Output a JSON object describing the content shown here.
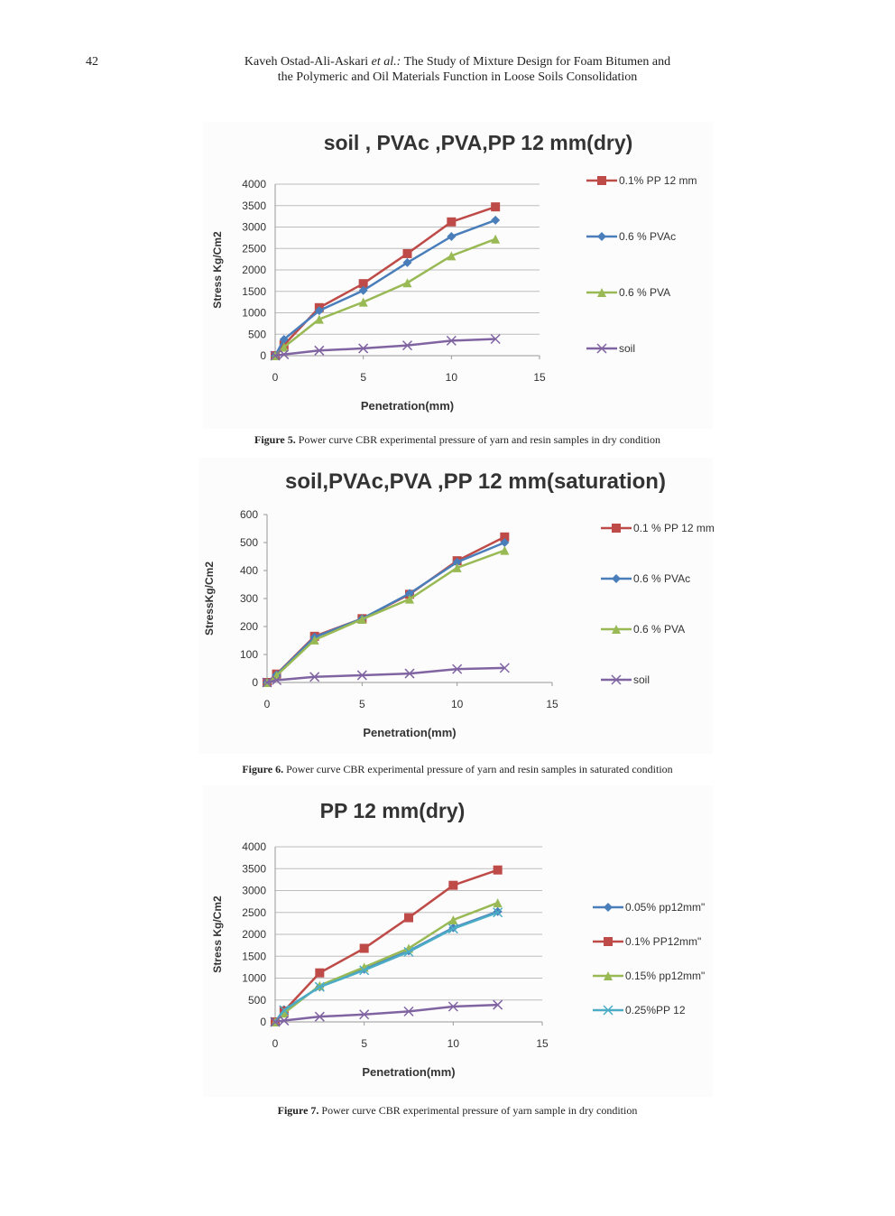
{
  "header": {
    "page_number": "42",
    "authors": "Kaveh Ostad-Ali-Askari",
    "authors_suffix": "et al.:",
    "title_lines": [
      "The Study of Mixture Design for Foam Bitumen and",
      "the Polymeric and Oil Materials Function in Loose Soils Consolidation"
    ]
  },
  "figures": [
    {
      "label": "Figure 5.",
      "caption": "Power curve CBR experimental pressure of yarn and resin samples in dry condition"
    },
    {
      "label": "Figure 6.",
      "caption": "Power curve CBR experimental pressure of yarn and resin samples in saturated condition"
    },
    {
      "label": "Figure 7.",
      "caption": "Power curve CBR experimental pressure of yarn sample in dry condition"
    }
  ],
  "chart_data": [
    {
      "type": "line",
      "title": "soil , PVAc ,PVA,PP 12 mm(dry)",
      "x_label": "Penetration(mm)",
      "y_label": "Stress Kg/Cm2",
      "x": [
        0,
        0.5,
        2.5,
        5,
        7.5,
        10,
        12.5
      ],
      "xlim": [
        0,
        15
      ],
      "xticks": [
        0,
        5,
        10,
        15
      ],
      "ylim": [
        0,
        4000
      ],
      "yticks": [
        0,
        500,
        1000,
        1500,
        2000,
        2500,
        3000,
        3500,
        4000
      ],
      "grid": true,
      "series": [
        {
          "name": "0.1% PP 12 mm",
          "color": "#be4b48",
          "marker": "square",
          "values": [
            0,
            250,
            1120,
            1680,
            2380,
            3120,
            3470
          ]
        },
        {
          "name": "0.6 % PVAc",
          "color": "#4a7ebb",
          "marker": "diamond",
          "values": [
            0,
            380,
            1050,
            1520,
            2170,
            2780,
            3160
          ]
        },
        {
          "name": "0.6 % PVA",
          "color": "#98b954",
          "marker": "triangle",
          "values": [
            0,
            200,
            850,
            1250,
            1700,
            2330,
            2720
          ]
        },
        {
          "name": "soil",
          "color": "#8064a2",
          "marker": "x",
          "values": [
            0,
            30,
            120,
            170,
            240,
            350,
            390
          ]
        }
      ]
    },
    {
      "type": "line",
      "title": "soil,PVAc,PVA ,PP 12 mm(saturation)",
      "x_label": "Penetration(mm)",
      "y_label": "StressKg/Cm2",
      "x": [
        0,
        0.5,
        2.5,
        5,
        7.5,
        10,
        12.5
      ],
      "xlim": [
        0,
        15
      ],
      "xticks": [
        0,
        5,
        10,
        15
      ],
      "ylim": [
        0,
        600
      ],
      "yticks": [
        0,
        100,
        200,
        300,
        400,
        500,
        600
      ],
      "grid": false,
      "series": [
        {
          "name": "0.1 % PP 12 mm",
          "color": "#be4b48",
          "marker": "square",
          "values": [
            0,
            30,
            165,
            228,
            315,
            435,
            520
          ]
        },
        {
          "name": "0.6 % PVAc",
          "color": "#4a7ebb",
          "marker": "diamond",
          "values": [
            0,
            28,
            162,
            228,
            318,
            430,
            500
          ]
        },
        {
          "name": "0.6 % PVA",
          "color": "#98b954",
          "marker": "triangle",
          "values": [
            0,
            25,
            152,
            226,
            298,
            410,
            472
          ]
        },
        {
          "name": "soil",
          "color": "#8064a2",
          "marker": "x",
          "values": [
            0,
            8,
            20,
            26,
            32,
            48,
            52
          ]
        }
      ]
    },
    {
      "type": "line",
      "title": "PP 12 mm(dry)",
      "x_label": "Penetration(mm)",
      "y_label": "Stress Kg/Cm2",
      "x": [
        0,
        0.5,
        2.5,
        5,
        7.5,
        10,
        12.5
      ],
      "xlim": [
        0,
        15
      ],
      "xticks": [
        0,
        5,
        10,
        15
      ],
      "ylim": [
        0,
        4000
      ],
      "yticks": [
        0,
        500,
        1000,
        1500,
        2000,
        2500,
        3000,
        3500,
        4000
      ],
      "grid": true,
      "series": [
        {
          "name": "0.05% pp12mm\"",
          "color": "#4a7ebb",
          "marker": "diamond",
          "values": [
            0,
            280,
            800,
            1200,
            1620,
            2150,
            2520
          ]
        },
        {
          "name": "0.1% PP12mm\"",
          "color": "#be4b48",
          "marker": "square",
          "values": [
            0,
            250,
            1120,
            1680,
            2380,
            3120,
            3470
          ]
        },
        {
          "name": "0.15% pp12mm\"",
          "color": "#98b954",
          "marker": "triangle",
          "values": [
            0,
            200,
            830,
            1250,
            1680,
            2330,
            2720
          ]
        },
        {
          "name": "0.25%PP 12",
          "color": "#4bacc6",
          "marker": "x",
          "values": [
            0,
            270,
            800,
            1180,
            1600,
            2130,
            2500
          ]
        },
        {
          "color": "#8064a2",
          "marker": "x",
          "values": [
            0,
            30,
            120,
            170,
            240,
            350,
            390
          ]
        }
      ]
    }
  ]
}
